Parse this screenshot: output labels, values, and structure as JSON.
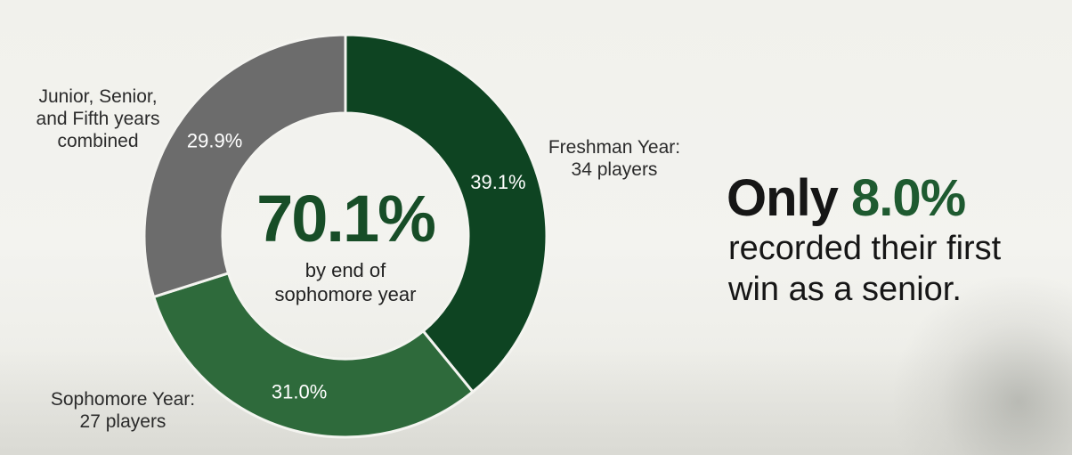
{
  "chart_data": {
    "type": "pie",
    "donut": true,
    "slices": [
      {
        "label": "Freshman Year: 34 players",
        "value": 39.1,
        "display": "39.1%",
        "color": "#0e4422"
      },
      {
        "label": "Sophomore Year: 27 players",
        "value": 31.0,
        "display": "31.0%",
        "color": "#2e6a3b"
      },
      {
        "label": "Junior, Senior, and Fifth years combined",
        "value": 29.9,
        "display": "29.9%",
        "color": "#6c6c6c"
      }
    ],
    "center": {
      "value": "70.1%",
      "line1": "by end of",
      "line2": "sophomore year",
      "color": "#174d27"
    }
  },
  "callouts": {
    "junior": [
      "Junior, Senior,",
      "and Fifth years",
      "combined"
    ],
    "freshman": [
      "Freshman Year:",
      "34 players"
    ],
    "sophomore": [
      "Sophomore Year:",
      "27 players"
    ]
  },
  "headline": {
    "prefix": "Only",
    "highlight": "8.0%",
    "line2": "recorded their first",
    "line3": "win as a senior."
  },
  "colors": {
    "accent": "#1e5a30",
    "background": "#f1f1ec"
  }
}
